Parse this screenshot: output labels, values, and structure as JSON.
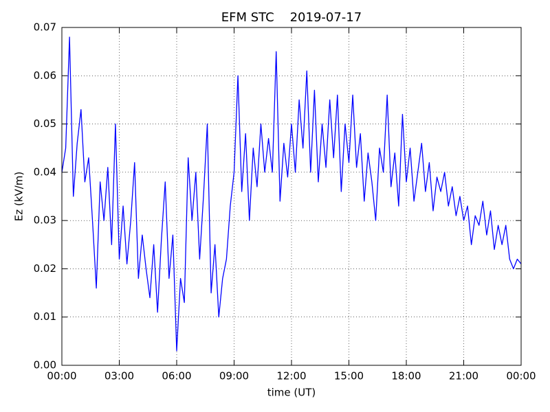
{
  "chart_data": {
    "type": "line",
    "title": "EFM STC    2019-07-17",
    "xlabel": "time (UT)",
    "ylabel": "Ez (kV/m)",
    "xlim": [
      0,
      24
    ],
    "ylim": [
      0,
      0.07
    ],
    "grid": true,
    "xticks": [
      {
        "value": 0,
        "label": "00:00"
      },
      {
        "value": 3,
        "label": "03:00"
      },
      {
        "value": 6,
        "label": "06:00"
      },
      {
        "value": 9,
        "label": "09:00"
      },
      {
        "value": 12,
        "label": "12:00"
      },
      {
        "value": 15,
        "label": "15:00"
      },
      {
        "value": 18,
        "label": "18:00"
      },
      {
        "value": 21,
        "label": "21:00"
      },
      {
        "value": 24,
        "label": "00:00"
      }
    ],
    "yticks": [
      {
        "value": 0,
        "label": "0.00"
      },
      {
        "value": 0.01,
        "label": "0.01"
      },
      {
        "value": 0.02,
        "label": "0.02"
      },
      {
        "value": 0.03,
        "label": "0.03"
      },
      {
        "value": 0.04,
        "label": "0.04"
      },
      {
        "value": 0.05,
        "label": "0.05"
      },
      {
        "value": 0.06,
        "label": "0.06"
      },
      {
        "value": 0.07,
        "label": "0.07"
      }
    ],
    "x": [
      0,
      0.2,
      0.4,
      0.6,
      0.8,
      1,
      1.2,
      1.4,
      1.6,
      1.8,
      2,
      2.2,
      2.4,
      2.6,
      2.8,
      3,
      3.2,
      3.4,
      3.6,
      3.8,
      4,
      4.2,
      4.4,
      4.6,
      4.8,
      5,
      5.2,
      5.4,
      5.6,
      5.8,
      6,
      6.2,
      6.4,
      6.6,
      6.8,
      7,
      7.2,
      7.4,
      7.6,
      7.8,
      8,
      8.2,
      8.4,
      8.6,
      8.8,
      9,
      9.2,
      9.4,
      9.6,
      9.8,
      10,
      10.2,
      10.4,
      10.6,
      10.8,
      11,
      11.2,
      11.4,
      11.6,
      11.8,
      12,
      12.2,
      12.4,
      12.6,
      12.8,
      13,
      13.2,
      13.4,
      13.6,
      13.8,
      14,
      14.2,
      14.4,
      14.6,
      14.8,
      15,
      15.2,
      15.4,
      15.6,
      15.8,
      16,
      16.2,
      16.4,
      16.6,
      16.8,
      17,
      17.2,
      17.4,
      17.6,
      17.8,
      18,
      18.2,
      18.4,
      18.6,
      18.8,
      19,
      19.2,
      19.4,
      19.6,
      19.8,
      20,
      20.2,
      20.4,
      20.6,
      20.8,
      21,
      21.2,
      21.4,
      21.6,
      21.8,
      22,
      22.2,
      22.4,
      22.6,
      22.8,
      23,
      23.2,
      23.4,
      23.6,
      23.8,
      24
    ],
    "series": [
      {
        "name": "Ez",
        "color": "#0000ff",
        "values": [
          0.04,
          0.045,
          0.068,
          0.035,
          0.046,
          0.053,
          0.038,
          0.043,
          0.03,
          0.016,
          0.038,
          0.03,
          0.041,
          0.025,
          0.05,
          0.022,
          0.033,
          0.021,
          0.03,
          0.042,
          0.018,
          0.027,
          0.02,
          0.014,
          0.025,
          0.011,
          0.026,
          0.038,
          0.018,
          0.027,
          0.003,
          0.018,
          0.013,
          0.043,
          0.03,
          0.04,
          0.022,
          0.035,
          0.05,
          0.015,
          0.025,
          0.01,
          0.018,
          0.022,
          0.033,
          0.04,
          0.06,
          0.036,
          0.048,
          0.03,
          0.045,
          0.037,
          0.05,
          0.04,
          0.047,
          0.04,
          0.065,
          0.034,
          0.046,
          0.039,
          0.05,
          0.04,
          0.055,
          0.045,
          0.061,
          0.04,
          0.057,
          0.038,
          0.05,
          0.041,
          0.055,
          0.043,
          0.056,
          0.036,
          0.05,
          0.042,
          0.056,
          0.041,
          0.048,
          0.034,
          0.044,
          0.038,
          0.03,
          0.045,
          0.04,
          0.056,
          0.037,
          0.044,
          0.033,
          0.052,
          0.038,
          0.045,
          0.034,
          0.04,
          0.046,
          0.036,
          0.042,
          0.032,
          0.039,
          0.036,
          0.04,
          0.033,
          0.037,
          0.031,
          0.035,
          0.03,
          0.033,
          0.025,
          0.031,
          0.029,
          0.034,
          0.027,
          0.032,
          0.024,
          0.029,
          0.025,
          0.029,
          0.022,
          0.02,
          0.022,
          0.021
        ]
      }
    ]
  }
}
